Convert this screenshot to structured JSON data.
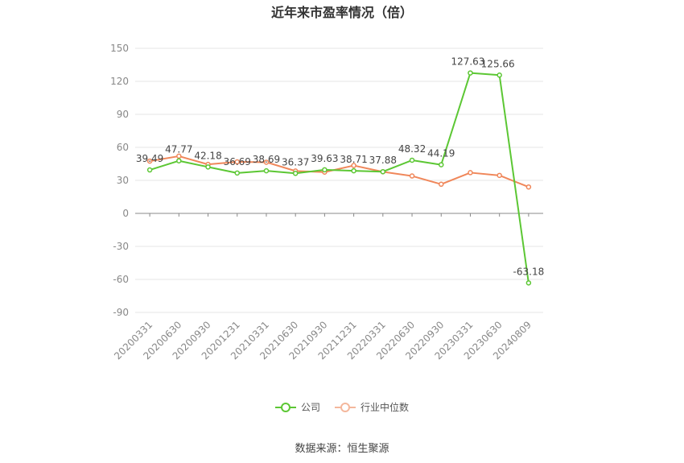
{
  "chart_data": {
    "type": "line",
    "title": "近年来市盈率情况（倍）",
    "categories": [
      "20200331",
      "20200630",
      "20200930",
      "20201231",
      "20210331",
      "20210630",
      "20210930",
      "20211231",
      "20220331",
      "20220630",
      "20220930",
      "20230331",
      "20230630",
      "20240809"
    ],
    "ylim": [
      -90,
      150
    ],
    "yticks": [
      150,
      120,
      90,
      60,
      30,
      0,
      -30,
      -60,
      -90
    ],
    "grid": true,
    "legend_position": "bottom",
    "series": [
      {
        "name": "公司",
        "color": "#5cc734",
        "values": [
          39.49,
          47.77,
          42.18,
          36.69,
          38.69,
          36.37,
          39.63,
          38.71,
          37.88,
          48.32,
          44.19,
          127.63,
          125.66,
          -63.18
        ],
        "labels": [
          "39.49",
          "47.77",
          "42.18",
          "36.69",
          "38.69",
          "36.37",
          "39.63",
          "38.71",
          "37.88",
          "48.32",
          "44.19",
          "127.63",
          "125.66",
          "-63.18"
        ]
      },
      {
        "name": "行业中位数",
        "color": "#f0875a",
        "values": [
          47.5,
          52.0,
          44.5,
          46.8,
          46.5,
          38.5,
          37.5,
          43.5,
          37.8,
          34.0,
          26.5,
          37.0,
          34.5,
          24.0
        ]
      }
    ]
  },
  "source": "数据来源：恒生聚源"
}
